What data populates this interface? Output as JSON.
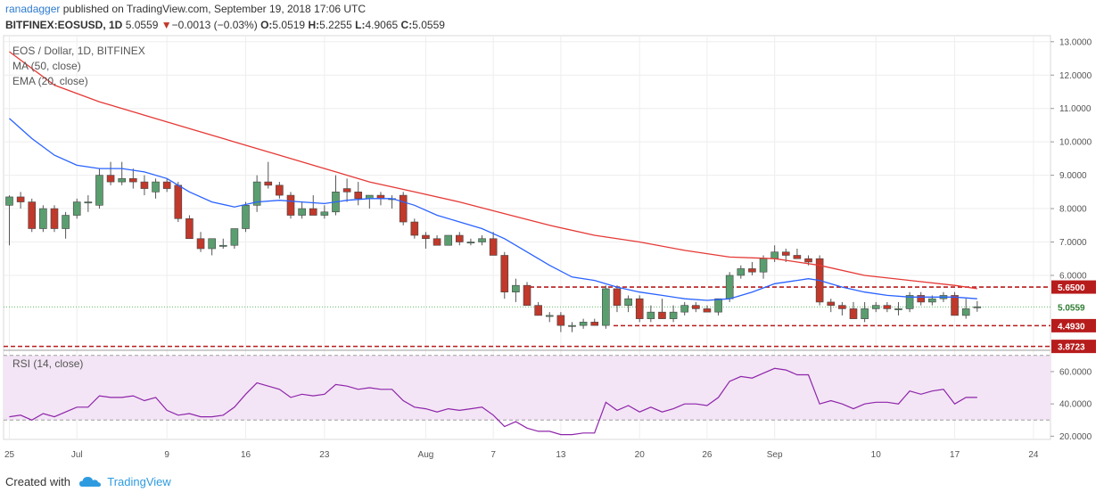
{
  "header": {
    "publisher": "ranadagger",
    "published_text": " published on TradingView.com, September 19, 2018 17:06 UTC",
    "symbol": "BITFINEX:EOSUSD, 1D",
    "last": "5.0559",
    "arrow": "▼",
    "change": "−0.0013 (−0.03%)",
    "o_label": "O:",
    "o": "5.0519",
    "h_label": "H:",
    "h": "5.2255",
    "l_label": "L:",
    "l": "4.9065",
    "c_label": "C:",
    "c": "5.0559"
  },
  "legend": {
    "title": "EOS / Dollar, 1D, BITFINEX",
    "ma": "MA (50, close)",
    "ema": "EMA (20, close)",
    "rsi": "RSI (14, close)"
  },
  "footer": {
    "created_with": "Created with",
    "brand": "TradingView"
  },
  "colors": {
    "up": "#5a9e6f",
    "down": "#c0392b",
    "ma": "#e53935",
    "ema": "#2962ff",
    "rsi": "#8e24aa",
    "rsi_band": "#f3e5f5",
    "level": "#b71c1c"
  },
  "chart_data": {
    "type": "candlestick",
    "price_axis": {
      "ticks": [
        "13.0000",
        "12.0000",
        "11.0000",
        "10.0000",
        "9.0000",
        "8.0000",
        "7.0000",
        "6.0000"
      ],
      "ylim": [
        3.8,
        13.0
      ]
    },
    "rsi_axis": {
      "ticks": [
        "60.0000",
        "40.0000",
        "20.0000"
      ],
      "ylim": [
        18,
        71
      ],
      "band": [
        30,
        70
      ]
    },
    "x_ticks": [
      {
        "label": "25",
        "day": 0
      },
      {
        "label": "Jul",
        "day": 6
      },
      {
        "label": "9",
        "day": 14
      },
      {
        "label": "16",
        "day": 21
      },
      {
        "label": "23",
        "day": 28
      },
      {
        "label": "Aug",
        "day": 37
      },
      {
        "label": "7",
        "day": 43
      },
      {
        "label": "13",
        "day": 49
      },
      {
        "label": "20",
        "day": 56
      },
      {
        "label": "26",
        "day": 62
      },
      {
        "label": "Sep",
        "day": 68
      },
      {
        "label": "10",
        "day": 77
      },
      {
        "label": "17",
        "day": 84
      },
      {
        "label": "24",
        "day": 91
      }
    ],
    "levels": [
      {
        "value": 5.65,
        "label": "5.6500"
      },
      {
        "value": 4.493,
        "label": "4.4930"
      },
      {
        "value": 3.8723,
        "label": "3.8723"
      }
    ],
    "last_price": {
      "value": 5.0559,
      "label": "5.0559"
    },
    "candles": [
      [
        8.1,
        8.4,
        6.9,
        8.35
      ],
      [
        8.35,
        8.5,
        8.0,
        8.2
      ],
      [
        8.2,
        8.3,
        7.3,
        7.4
      ],
      [
        7.4,
        8.1,
        7.3,
        8.0
      ],
      [
        8.0,
        8.1,
        7.3,
        7.4
      ],
      [
        7.4,
        7.9,
        7.1,
        7.8
      ],
      [
        7.8,
        8.3,
        7.7,
        8.2
      ],
      [
        8.2,
        8.4,
        7.9,
        8.2
      ],
      [
        8.1,
        9.2,
        8.0,
        9.0
      ],
      [
        9.0,
        9.4,
        8.7,
        8.8
      ],
      [
        8.8,
        9.4,
        8.7,
        8.9
      ],
      [
        8.9,
        9.2,
        8.6,
        8.8
      ],
      [
        8.8,
        9.0,
        8.4,
        8.6
      ],
      [
        8.5,
        8.9,
        8.3,
        8.8
      ],
      [
        8.8,
        8.9,
        8.5,
        8.6
      ],
      [
        8.7,
        8.8,
        7.6,
        7.7
      ],
      [
        7.7,
        7.8,
        7.1,
        7.1
      ],
      [
        7.1,
        7.3,
        6.7,
        6.8
      ],
      [
        6.8,
        7.1,
        6.6,
        7.1
      ],
      [
        6.9,
        7.1,
        6.8,
        6.9
      ],
      [
        6.9,
        7.4,
        6.8,
        7.4
      ],
      [
        7.4,
        8.2,
        7.3,
        8.1
      ],
      [
        8.1,
        9.0,
        7.9,
        8.8
      ],
      [
        8.8,
        9.4,
        8.6,
        8.7
      ],
      [
        8.7,
        8.8,
        8.3,
        8.4
      ],
      [
        8.4,
        8.5,
        7.7,
        7.8
      ],
      [
        7.8,
        8.2,
        7.7,
        8.0
      ],
      [
        8.0,
        8.4,
        7.8,
        7.8
      ],
      [
        7.8,
        8.1,
        7.7,
        7.9
      ],
      [
        7.9,
        9.0,
        7.8,
        8.5
      ],
      [
        8.6,
        8.9,
        8.2,
        8.5
      ],
      [
        8.5,
        8.8,
        8.1,
        8.3
      ],
      [
        8.3,
        8.4,
        8.0,
        8.4
      ],
      [
        8.4,
        8.5,
        8.1,
        8.3
      ],
      [
        8.3,
        8.4,
        8.0,
        8.3
      ],
      [
        8.4,
        8.5,
        7.5,
        7.6
      ],
      [
        7.6,
        7.7,
        7.1,
        7.2
      ],
      [
        7.2,
        7.3,
        6.8,
        7.1
      ],
      [
        7.1,
        7.2,
        6.9,
        6.9
      ],
      [
        6.9,
        7.2,
        6.9,
        7.2
      ],
      [
        7.2,
        7.3,
        6.9,
        7.0
      ],
      [
        7.0,
        7.1,
        6.9,
        7.0
      ],
      [
        7.0,
        7.2,
        6.9,
        7.1
      ],
      [
        7.1,
        7.3,
        6.6,
        6.6
      ],
      [
        6.6,
        6.7,
        5.3,
        5.5
      ],
      [
        5.5,
        5.9,
        5.2,
        5.7
      ],
      [
        5.7,
        5.8,
        5.1,
        5.1
      ],
      [
        5.1,
        5.2,
        4.8,
        4.8
      ],
      [
        4.8,
        4.9,
        4.6,
        4.8
      ],
      [
        4.8,
        4.9,
        4.3,
        4.5
      ],
      [
        4.5,
        4.6,
        4.3,
        4.5
      ],
      [
        4.5,
        4.7,
        4.4,
        4.6
      ],
      [
        4.6,
        4.7,
        4.5,
        4.5
      ],
      [
        4.5,
        5.7,
        4.4,
        5.6
      ],
      [
        5.6,
        5.7,
        4.9,
        5.1
      ],
      [
        5.1,
        5.4,
        4.9,
        5.3
      ],
      [
        5.3,
        5.4,
        4.6,
        4.7
      ],
      [
        4.7,
        5.1,
        4.6,
        4.9
      ],
      [
        4.9,
        5.3,
        4.7,
        4.7
      ],
      [
        4.7,
        5.1,
        4.6,
        4.9
      ],
      [
        4.9,
        5.2,
        4.8,
        5.1
      ],
      [
        5.1,
        5.2,
        4.9,
        5.0
      ],
      [
        5.0,
        5.1,
        4.9,
        4.9
      ],
      [
        4.9,
        5.3,
        4.8,
        5.3
      ],
      [
        5.3,
        6.1,
        5.2,
        6.0
      ],
      [
        6.0,
        6.3,
        5.9,
        6.2
      ],
      [
        6.2,
        6.4,
        6.0,
        6.1
      ],
      [
        6.1,
        6.6,
        5.9,
        6.5
      ],
      [
        6.5,
        6.9,
        6.4,
        6.7
      ],
      [
        6.7,
        6.8,
        6.4,
        6.6
      ],
      [
        6.6,
        6.8,
        6.5,
        6.5
      ],
      [
        6.5,
        6.6,
        6.3,
        6.4
      ],
      [
        6.5,
        6.6,
        5.1,
        5.2
      ],
      [
        5.2,
        5.3,
        4.9,
        5.1
      ],
      [
        5.1,
        5.2,
        4.8,
        5.0
      ],
      [
        5.0,
        5.2,
        4.7,
        4.7
      ],
      [
        4.7,
        5.2,
        4.6,
        5.0
      ],
      [
        5.0,
        5.2,
        4.9,
        5.1
      ],
      [
        5.1,
        5.2,
        4.9,
        5.0
      ],
      [
        5.0,
        5.2,
        4.8,
        5.0
      ],
      [
        5.0,
        5.5,
        4.9,
        5.4
      ],
      [
        5.4,
        5.5,
        5.1,
        5.2
      ],
      [
        5.2,
        5.4,
        5.1,
        5.3
      ],
      [
        5.3,
        5.5,
        5.2,
        5.4
      ],
      [
        5.4,
        5.5,
        4.8,
        4.8
      ],
      [
        4.8,
        5.3,
        4.7,
        5.0
      ],
      [
        5.05,
        5.23,
        4.91,
        5.06
      ]
    ],
    "ema20": [
      [
        0,
        10.7
      ],
      [
        2,
        10.1
      ],
      [
        4,
        9.6
      ],
      [
        6,
        9.3
      ],
      [
        8,
        9.2
      ],
      [
        10,
        9.2
      ],
      [
        12,
        9.1
      ],
      [
        14,
        8.9
      ],
      [
        16,
        8.5
      ],
      [
        18,
        8.2
      ],
      [
        20,
        8.05
      ],
      [
        22,
        8.2
      ],
      [
        24,
        8.25
      ],
      [
        26,
        8.2
      ],
      [
        28,
        8.15
      ],
      [
        30,
        8.25
      ],
      [
        32,
        8.3
      ],
      [
        34,
        8.3
      ],
      [
        36,
        8.1
      ],
      [
        38,
        7.8
      ],
      [
        40,
        7.6
      ],
      [
        42,
        7.4
      ],
      [
        44,
        7.1
      ],
      [
        46,
        6.7
      ],
      [
        48,
        6.3
      ],
      [
        50,
        5.95
      ],
      [
        52,
        5.85
      ],
      [
        54,
        5.65
      ],
      [
        56,
        5.5
      ],
      [
        58,
        5.4
      ],
      [
        60,
        5.3
      ],
      [
        62,
        5.25
      ],
      [
        64,
        5.3
      ],
      [
        66,
        5.5
      ],
      [
        68,
        5.75
      ],
      [
        70,
        5.85
      ],
      [
        71,
        5.9
      ],
      [
        72,
        5.85
      ],
      [
        74,
        5.65
      ],
      [
        76,
        5.5
      ],
      [
        78,
        5.4
      ],
      [
        80,
        5.35
      ],
      [
        82,
        5.35
      ],
      [
        84,
        5.35
      ],
      [
        86,
        5.3
      ]
    ],
    "ma50": [
      [
        0,
        12.7
      ],
      [
        4,
        11.7
      ],
      [
        8,
        11.2
      ],
      [
        12,
        10.8
      ],
      [
        16,
        10.4
      ],
      [
        20,
        10.0
      ],
      [
        24,
        9.6
      ],
      [
        28,
        9.2
      ],
      [
        32,
        8.8
      ],
      [
        36,
        8.5
      ],
      [
        40,
        8.2
      ],
      [
        44,
        7.85
      ],
      [
        48,
        7.5
      ],
      [
        52,
        7.2
      ],
      [
        56,
        7.0
      ],
      [
        60,
        6.75
      ],
      [
        62,
        6.65
      ],
      [
        64,
        6.55
      ],
      [
        68,
        6.5
      ],
      [
        72,
        6.3
      ],
      [
        76,
        6.0
      ],
      [
        80,
        5.85
      ],
      [
        84,
        5.7
      ],
      [
        86,
        5.6
      ]
    ],
    "rsi": [
      [
        0,
        32
      ],
      [
        1,
        33
      ],
      [
        2,
        30
      ],
      [
        3,
        34
      ],
      [
        4,
        32
      ],
      [
        5,
        35
      ],
      [
        6,
        38
      ],
      [
        7,
        38
      ],
      [
        8,
        45
      ],
      [
        9,
        44
      ],
      [
        10,
        44
      ],
      [
        11,
        45
      ],
      [
        12,
        42
      ],
      [
        13,
        44
      ],
      [
        14,
        36
      ],
      [
        15,
        33
      ],
      [
        16,
        34
      ],
      [
        17,
        32
      ],
      [
        18,
        32
      ],
      [
        19,
        33
      ],
      [
        20,
        38
      ],
      [
        21,
        46
      ],
      [
        22,
        53
      ],
      [
        23,
        51
      ],
      [
        24,
        49
      ],
      [
        25,
        44
      ],
      [
        26,
        46
      ],
      [
        27,
        45
      ],
      [
        28,
        46
      ],
      [
        29,
        52
      ],
      [
        30,
        51
      ],
      [
        31,
        49
      ],
      [
        32,
        50
      ],
      [
        33,
        49
      ],
      [
        34,
        49
      ],
      [
        35,
        42
      ],
      [
        36,
        38
      ],
      [
        37,
        37
      ],
      [
        38,
        35
      ],
      [
        39,
        37
      ],
      [
        40,
        36
      ],
      [
        41,
        37
      ],
      [
        42,
        38
      ],
      [
        43,
        33
      ],
      [
        44,
        26
      ],
      [
        45,
        29
      ],
      [
        46,
        25
      ],
      [
        47,
        23
      ],
      [
        48,
        23
      ],
      [
        49,
        21
      ],
      [
        50,
        21
      ],
      [
        51,
        22
      ],
      [
        52,
        22
      ],
      [
        53,
        41
      ],
      [
        54,
        36
      ],
      [
        55,
        39
      ],
      [
        56,
        35
      ],
      [
        57,
        38
      ],
      [
        58,
        35
      ],
      [
        59,
        37
      ],
      [
        60,
        40
      ],
      [
        61,
        40
      ],
      [
        62,
        39
      ],
      [
        63,
        44
      ],
      [
        64,
        54
      ],
      [
        65,
        57
      ],
      [
        66,
        56
      ],
      [
        67,
        59
      ],
      [
        68,
        62
      ],
      [
        69,
        61
      ],
      [
        70,
        58
      ],
      [
        71,
        58
      ],
      [
        72,
        40
      ],
      [
        73,
        42
      ],
      [
        74,
        40
      ],
      [
        75,
        37
      ],
      [
        76,
        40
      ],
      [
        77,
        41
      ],
      [
        78,
        41
      ],
      [
        79,
        40
      ],
      [
        80,
        48
      ],
      [
        81,
        46
      ],
      [
        82,
        48
      ],
      [
        83,
        49
      ],
      [
        84,
        40
      ],
      [
        85,
        44
      ],
      [
        86,
        44
      ]
    ]
  }
}
